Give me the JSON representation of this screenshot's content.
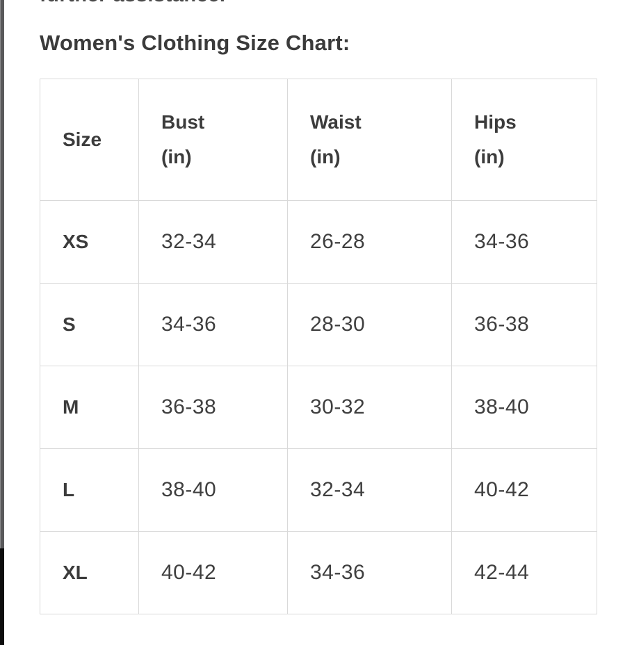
{
  "page": {
    "clipped_top_text": "further assistance.",
    "title": "Women's Clothing Size Chart:"
  },
  "colors": {
    "background": "#ffffff",
    "text_dark": "#3b3b3b",
    "table_border": "#d9d9d9",
    "edge_bar_gray": "#59595b",
    "edge_bar_black": "#0d0d0d"
  },
  "table": {
    "header": {
      "size": "Size",
      "bust_l1": "Bust",
      "bust_l2": "(in)",
      "waist_l1": "Waist",
      "waist_l2": "(in)",
      "hips_l1": "Hips",
      "hips_l2": "(in)"
    },
    "rows": [
      {
        "size": "XS",
        "bust": "32-34",
        "waist": "26-28",
        "hips": "34-36"
      },
      {
        "size": "S",
        "bust": "34-36",
        "waist": "28-30",
        "hips": "36-38"
      },
      {
        "size": "M",
        "bust": "36-38",
        "waist": "30-32",
        "hips": "38-40"
      },
      {
        "size": "L",
        "bust": "38-40",
        "waist": "32-34",
        "hips": "40-42"
      },
      {
        "size": "XL",
        "bust": "40-42",
        "waist": "34-36",
        "hips": "42-44"
      }
    ]
  },
  "chart_data": {
    "type": "table",
    "title": "Women's Clothing Size Chart:",
    "columns": [
      "Size",
      "Bust (in)",
      "Waist (in)",
      "Hips (in)"
    ],
    "rows": [
      [
        "XS",
        "32-34",
        "26-28",
        "34-36"
      ],
      [
        "S",
        "34-36",
        "28-30",
        "36-38"
      ],
      [
        "M",
        "36-38",
        "30-32",
        "38-40"
      ],
      [
        "L",
        "38-40",
        "32-34",
        "40-42"
      ],
      [
        "XL",
        "40-42",
        "34-36",
        "42-44"
      ]
    ]
  }
}
